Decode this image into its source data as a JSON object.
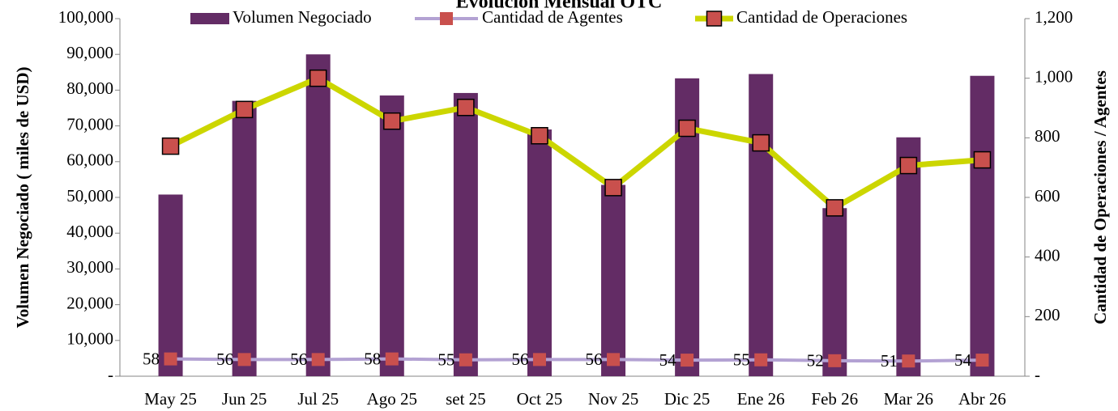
{
  "chart_data": {
    "type": "bar_line",
    "title": "Evolución Mensual OTC",
    "ylabel": "Volumen Negociado ( miles de USD)",
    "y2label": "Cantidad de Operaciones / Agentes",
    "categories": [
      "May 25",
      "Jun 25",
      "Jul 25",
      "Ago 25",
      "set 25",
      "Oct 25",
      "Nov 25",
      "Dic 25",
      "Ene 26",
      "Feb 26",
      "Mar 26",
      "Abr 26"
    ],
    "series": [
      {
        "name": "Volumen Negociado",
        "type": "bar",
        "color": "#632c65",
        "values": [
          50800,
          77000,
          90000,
          78500,
          79200,
          69000,
          53500,
          83300,
          84500,
          47000,
          66800,
          84000
        ]
      },
      {
        "name": "Cantidad de Agentes",
        "type": "line",
        "axis": "y2",
        "color": "#b3a2d3",
        "marker_color": "#c9504d",
        "data_labels": true,
        "values": [
          58,
          56,
          56,
          58,
          55,
          56,
          56,
          54,
          55,
          52,
          51,
          54
        ]
      },
      {
        "name": "Cantidad de Operaciones",
        "type": "line",
        "axis": "y2",
        "color": "#ccd600",
        "marker_color": "#c9504d",
        "values": [
          772,
          895,
          1000,
          856,
          902,
          807,
          633,
          832,
          783,
          565,
          707,
          726
        ]
      }
    ],
    "ylim": [
      0,
      100000
    ],
    "yticks": [
      {
        "value": 0,
        "label": "-"
      },
      {
        "value": 10000,
        "label": "10,000"
      },
      {
        "value": 20000,
        "label": "20,000"
      },
      {
        "value": 30000,
        "label": "30,000"
      },
      {
        "value": 40000,
        "label": "40,000"
      },
      {
        "value": 50000,
        "label": "50,000"
      },
      {
        "value": 60000,
        "label": "60,000"
      },
      {
        "value": 70000,
        "label": "70,000"
      },
      {
        "value": 80000,
        "label": "80,000"
      },
      {
        "value": 90000,
        "label": "90,000"
      },
      {
        "value": 100000,
        "label": "100,000"
      }
    ],
    "y2lim": [
      0,
      1200
    ],
    "y2ticks": [
      {
        "value": 0,
        "label": "-"
      },
      200,
      400,
      600,
      800,
      {
        "value": 1000,
        "label": "1,000"
      },
      {
        "value": 1200,
        "label": "1,200"
      }
    ],
    "grid": false,
    "legend": "top"
  }
}
